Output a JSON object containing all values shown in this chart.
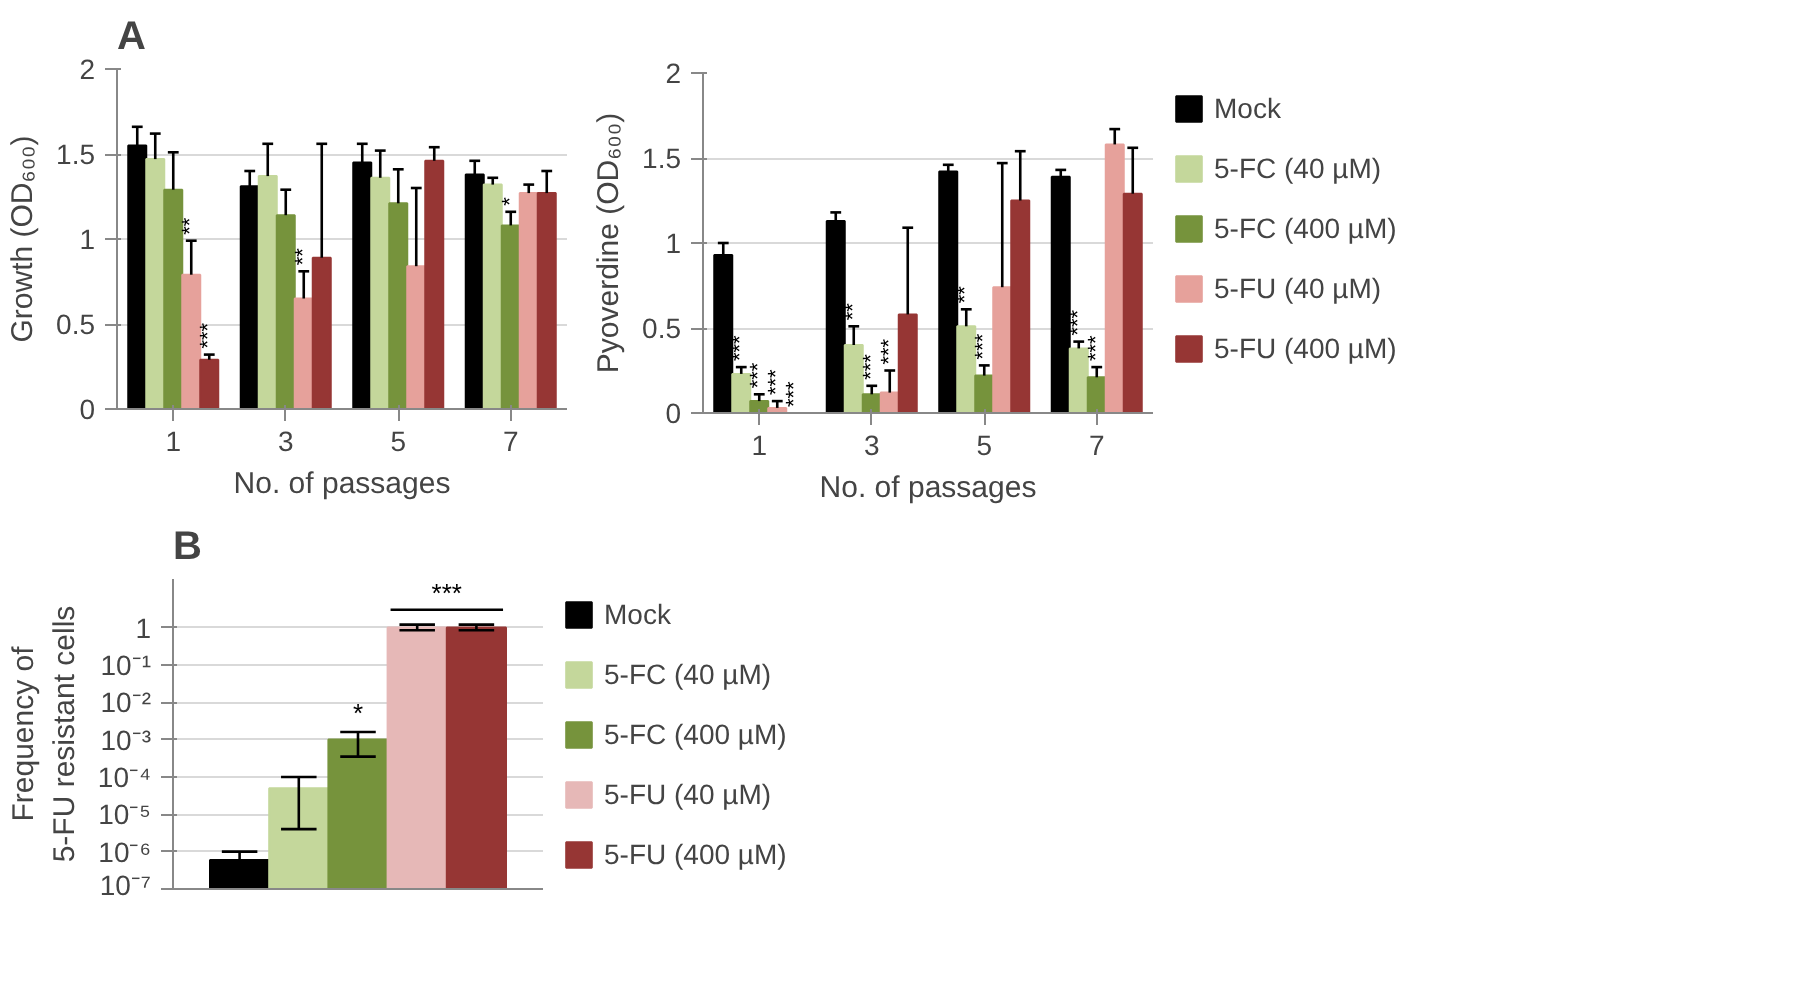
{
  "chart_data": [
    {
      "type": "bar",
      "title": "A",
      "xlabel": "No. of passages",
      "ylabel": "Growth (OD₆₀₀)",
      "categories": [
        "1",
        "3",
        "5",
        "7"
      ],
      "ylim": [
        0,
        2
      ],
      "yticks": [
        0,
        0.5,
        1,
        1.5,
        2
      ],
      "grid": "y",
      "series": [
        {
          "color": "#000000",
          "values": [
            1.55,
            1.31,
            1.45,
            1.38
          ],
          "errors": [
            [
              1.55,
              1.66
            ],
            [
              1.31,
              1.4
            ],
            [
              1.45,
              1.56
            ],
            [
              1.38,
              1.46
            ]
          ]
        },
        {
          "color": "#c4d79b",
          "values": [
            1.47,
            1.37,
            1.36,
            1.32
          ],
          "errors": [
            [
              1.47,
              1.62
            ],
            [
              1.37,
              1.56
            ],
            [
              1.36,
              1.52
            ],
            [
              1.32,
              1.36
            ]
          ]
        },
        {
          "color": "#76933c",
          "values": [
            1.29,
            1.14,
            1.21,
            1.08
          ],
          "errors": [
            [
              1.29,
              1.51
            ],
            [
              1.14,
              1.29
            ],
            [
              1.21,
              1.41
            ],
            [
              1.08,
              1.16
            ]
          ],
          "value_labels": [
            null,
            null,
            null,
            "*"
          ]
        },
        {
          "color": "#e6a19b",
          "values": [
            0.79,
            0.65,
            0.84,
            1.27
          ],
          "errors": [
            [
              0.79,
              0.99
            ],
            [
              0.65,
              0.81
            ],
            [
              0.84,
              1.3
            ],
            [
              1.27,
              1.32
            ]
          ],
          "value_labels": [
            "**",
            "**",
            null,
            null
          ]
        },
        {
          "color": "#963634",
          "values": [
            0.29,
            0.89,
            1.46,
            1.27
          ],
          "errors": [
            [
              0.29,
              0.32
            ],
            [
              0.89,
              1.56
            ],
            [
              1.46,
              1.54
            ],
            [
              1.27,
              1.4
            ]
          ],
          "value_labels": [
            "***",
            null,
            null,
            null
          ]
        }
      ]
    },
    {
      "type": "bar",
      "xlabel": "No. of passages",
      "ylabel": "Pyoverdine (OD₆₀₀)",
      "categories": [
        "1",
        "3",
        "5",
        "7"
      ],
      "ylim": [
        0,
        2
      ],
      "yticks": [
        0,
        0.5,
        1,
        1.5,
        2
      ],
      "grid": "y",
      "legend": "right",
      "series": [
        {
          "name": "Mock",
          "color": "#000000",
          "values": [
            0.93,
            1.13,
            1.42,
            1.39
          ],
          "errors": [
            [
              0.93,
              1.0
            ],
            [
              1.13,
              1.18
            ],
            [
              1.42,
              1.46
            ],
            [
              1.39,
              1.43
            ]
          ]
        },
        {
          "name": "5-FC (40 µM)",
          "color": "#c4d79b",
          "values": [
            0.23,
            0.4,
            0.51,
            0.38
          ],
          "errors": [
            [
              0.23,
              0.27
            ],
            [
              0.4,
              0.51
            ],
            [
              0.51,
              0.61
            ],
            [
              0.38,
              0.42
            ]
          ],
          "value_labels": [
            "***",
            "**",
            "**",
            "***"
          ]
        },
        {
          "name": "5-FC (400 µM)",
          "color": "#76933c",
          "values": [
            0.07,
            0.11,
            0.22,
            0.21
          ],
          "errors": [
            [
              0.07,
              0.11
            ],
            [
              0.11,
              0.16
            ],
            [
              0.22,
              0.28
            ],
            [
              0.21,
              0.27
            ]
          ],
          "value_labels": [
            "***",
            "***",
            "***",
            "***"
          ]
        },
        {
          "name": "5-FU (40 µM)",
          "color": "#e6a19b",
          "values": [
            0.03,
            0.12,
            0.74,
            1.58
          ],
          "errors": [
            [
              0.03,
              0.07
            ],
            [
              0.12,
              0.25
            ],
            [
              0.74,
              1.47
            ],
            [
              1.58,
              1.67
            ]
          ],
          "value_labels": [
            "***",
            "***",
            null,
            null
          ]
        },
        {
          "name": "5-FU (400 µM)",
          "color": "#963634",
          "values": [
            0.0,
            0.58,
            1.25,
            1.29
          ],
          "errors": [
            null,
            [
              0.58,
              1.09
            ],
            [
              1.25,
              1.54
            ],
            [
              1.29,
              1.56
            ]
          ],
          "value_labels": [
            "***",
            null,
            null,
            null
          ]
        }
      ]
    },
    {
      "type": "bar",
      "title": "B",
      "ylabel": "Frequency of\n5-FU resistant cells",
      "categories": [
        null
      ],
      "log": true,
      "ylim": [
        1e-07,
        20
      ],
      "yticks": [
        {
          "value": 1e-07,
          "label": "10⁻⁷"
        },
        {
          "value": 1e-06,
          "label": "10⁻⁶"
        },
        {
          "value": 1e-05,
          "label": "10⁻⁵"
        },
        {
          "value": 0.0001,
          "label": "10⁻⁴"
        },
        {
          "value": 0.001,
          "label": "10⁻³"
        },
        {
          "value": 0.01,
          "label": "10⁻²"
        },
        {
          "value": 0.1,
          "label": "10⁻¹"
        },
        1
      ],
      "grid": "y",
      "legend": "right",
      "annotations": [
        "***"
      ],
      "series": [
        {
          "name": "Mock",
          "color": "#000000",
          "values": [
            6e-07
          ],
          "errors": [
            [
              6e-07,
              1e-06
            ]
          ]
        },
        {
          "name": "5-FC (40 µM)",
          "color": "#c4d79b",
          "values": [
            5e-05
          ],
          "errors": [
            [
              4e-06,
              0.0001
            ]
          ]
        },
        {
          "name": "5-FC (400 µM)",
          "color": "#76933c",
          "values": [
            0.001
          ],
          "errors": [
            [
              0.00035,
              0.0016
            ]
          ],
          "value_labels": [
            "*"
          ]
        },
        {
          "name": "5-FU (40 µM)",
          "color": "#e6b8b7",
          "values": [
            1
          ],
          "errors": [
            [
              0.85,
              1.2
            ]
          ]
        },
        {
          "name": "5-FU (400 µM)",
          "color": "#963634",
          "values": [
            1
          ],
          "errors": [
            [
              0.85,
              1.2
            ]
          ]
        }
      ]
    }
  ]
}
